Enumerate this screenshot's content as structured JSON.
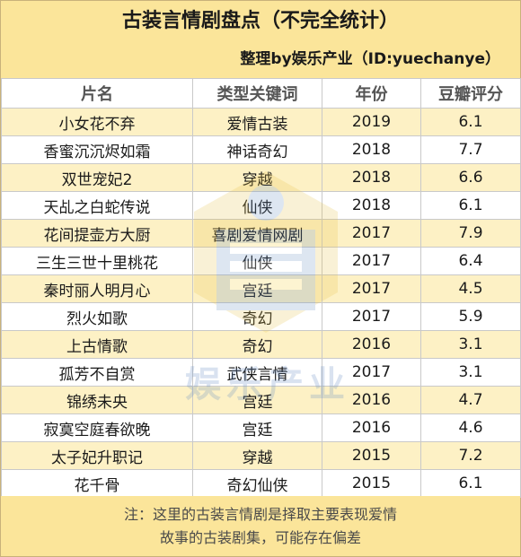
{
  "header": {
    "title": "古装言情剧盘点（不完全统计）",
    "subtitle": "整理by娱乐产业（ID:yuechanye）"
  },
  "table": {
    "columns": [
      "片名",
      "类型关键词",
      "年份",
      "豆瓣评分"
    ],
    "rows": [
      [
        "小女花不弃",
        "爱情古装",
        "2019",
        "6.1"
      ],
      [
        "香蜜沉沉烬如霜",
        "神话奇幻",
        "2018",
        "7.7"
      ],
      [
        "双世宠妃2",
        "穿越",
        "2018",
        "6.6"
      ],
      [
        "天乩之白蛇传说",
        "仙侠",
        "2018",
        "6.1"
      ],
      [
        "花间提壶方大厨",
        "喜剧爱情网剧",
        "2017",
        "7.9"
      ],
      [
        "三生三世十里桃花",
        "仙侠",
        "2017",
        "6.4"
      ],
      [
        "秦时丽人明月心",
        "宫廷",
        "2017",
        "4.5"
      ],
      [
        "烈火如歌",
        "奇幻",
        "2017",
        "5.9"
      ],
      [
        "上古情歌",
        "奇幻",
        "2016",
        "3.1"
      ],
      [
        "孤芳不自赏",
        "武侠言情",
        "2017",
        "3.1"
      ],
      [
        "锦绣未央",
        "宫廷",
        "2016",
        "4.7"
      ],
      [
        "寂寞空庭春欲晚",
        "宫廷",
        "2016",
        "4.6"
      ],
      [
        "太子妃升职记",
        "穿越",
        "2015",
        "7.2"
      ],
      [
        "花千骨",
        "奇幻仙侠",
        "2015",
        "6.1"
      ]
    ]
  },
  "footer": {
    "note_line1": "注：这里的古装言情剧是择取主要表现爱情",
    "note_line2": "故事的古装剧集，可能存在偏差"
  },
  "watermark": {
    "text": "娱乐产业"
  },
  "colors": {
    "header_bg": "#fbe59a",
    "stripe_bg": "#fdf1c5",
    "watermark_blue": "#6a8fc4",
    "watermark_yellow": "#e8c24a"
  }
}
